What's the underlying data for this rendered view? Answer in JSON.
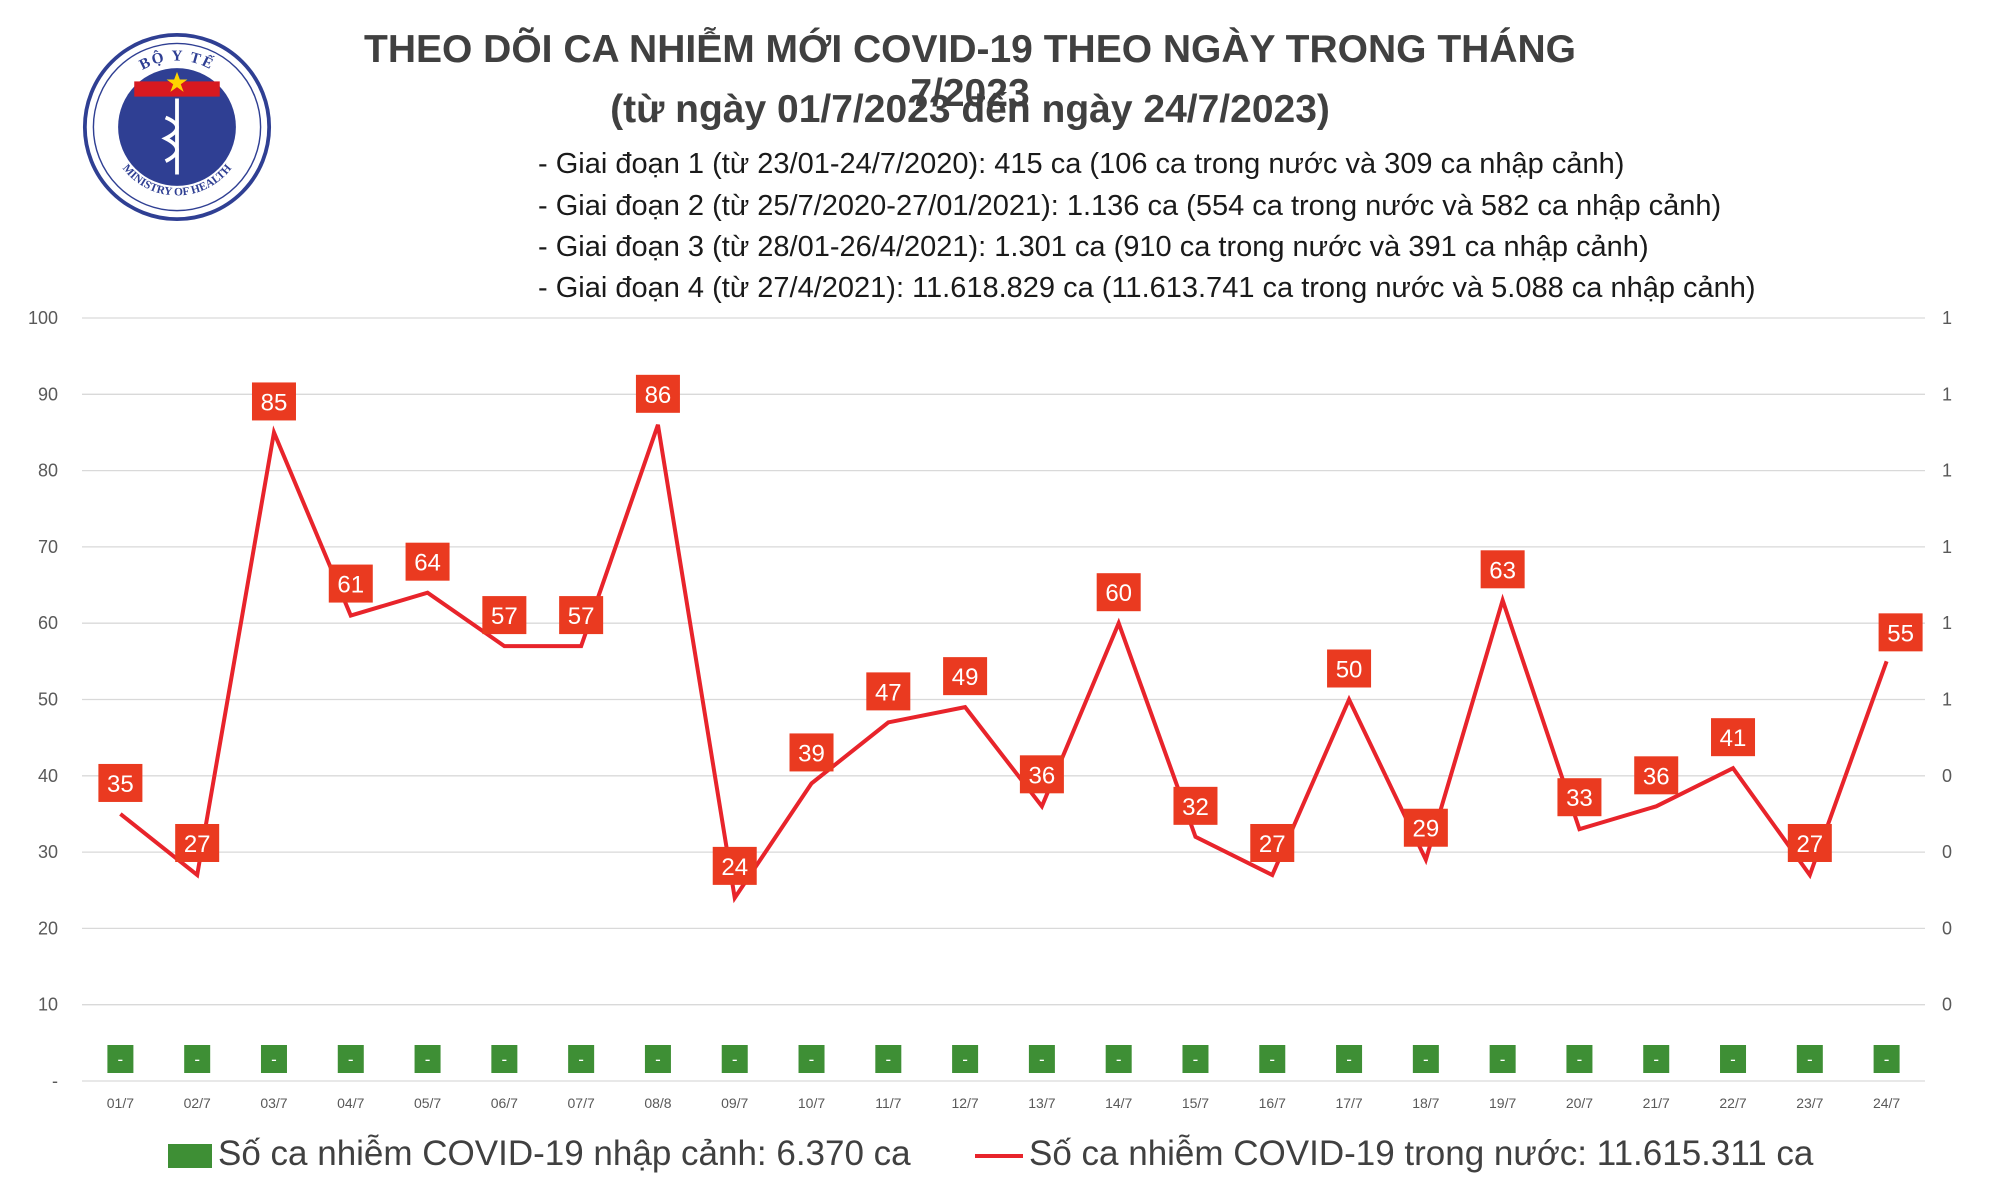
{
  "header": {
    "title": "THEO DÕI CA NHIỄM MỚI COVID-19 THEO NGÀY TRONG THÁNG 7/2023",
    "subtitle": "(từ ngày 01/7/2023 đến ngày 24/7/2023)",
    "phases": [
      "- Giai đoạn 1 (từ 23/01-24/7/2020): 415 ca (106 ca trong nước và 309 ca nhập cảnh)",
      "- Giai đoạn 2 (từ 25/7/2020-27/01/2021): 1.136 ca (554 ca trong nước và 582 ca nhập cảnh)",
      "- Giai đoạn 3 (từ 28/01-26/4/2021): 1.301 ca (910 ca trong nước và 391 ca nhập cảnh)",
      "- Giai đoạn 4 (từ 27/4/2021): 11.618.829 ca (11.613.741 ca trong nước và 5.088 ca nhập cảnh)"
    ]
  },
  "logo": {
    "top_text": "BỘ Y TẾ",
    "bottom_text": "MINISTRY OF HEALTH",
    "colors": {
      "ring": "#2f3f93",
      "star": "#ffd400",
      "band": "#d71920"
    }
  },
  "colors": {
    "line": "#e8242b",
    "label_bg": "#ea3a20",
    "bar": "#3e8f35",
    "grid": "#d9d9d9",
    "axis_text": "#595959"
  },
  "chart_data": {
    "type": "line",
    "categories": [
      "01/7",
      "02/7",
      "03/7",
      "04/7",
      "05/7",
      "06/7",
      "07/7",
      "08/8",
      "09/7",
      "10/7",
      "11/7",
      "12/7",
      "13/7",
      "14/7",
      "15/7",
      "16/7",
      "17/7",
      "18/7",
      "19/7",
      "20/7",
      "21/7",
      "22/7",
      "23/7",
      "24/7"
    ],
    "series": [
      {
        "name": "Số ca nhiễm COVID-19 trong nước: 11.615.311 ca",
        "values": [
          35,
          27,
          85,
          61,
          64,
          57,
          57,
          86,
          24,
          39,
          47,
          49,
          36,
          60,
          32,
          27,
          50,
          29,
          63,
          33,
          36,
          41,
          27,
          55
        ]
      },
      {
        "name": "Số ca nhiễm COVID-19 nhập cảnh: 6.370 ca",
        "values": [
          "-",
          "-",
          "-",
          "-",
          "-",
          "-",
          "-",
          "-",
          "-",
          "-",
          "-",
          "-",
          "-",
          "-",
          "-",
          "-",
          "-",
          "-",
          "-",
          "-",
          "-",
          "-",
          "-",
          "-"
        ]
      }
    ],
    "ylim": [
      0,
      100
    ],
    "y_ticks_left": [
      "-",
      "10",
      "20",
      "30",
      "40",
      "50",
      "60",
      "70",
      "80",
      "90",
      "100"
    ],
    "y_ticks_right": [
      "0",
      "0",
      "0",
      "0",
      "1",
      "1",
      "1",
      "1",
      "1",
      "1"
    ],
    "grid": true,
    "legend_position": "bottom"
  }
}
